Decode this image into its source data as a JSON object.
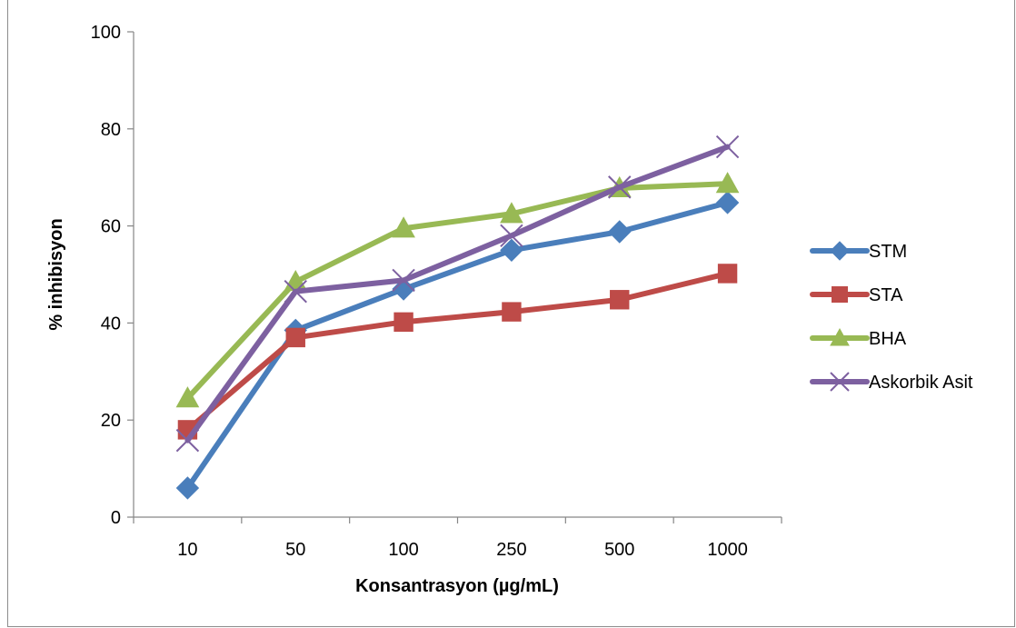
{
  "chart_data": {
    "type": "line",
    "xlabel": "Konsantrasyon (µg/mL)",
    "ylabel": "% inhibisyon",
    "categories": [
      "10",
      "50",
      "100",
      "250",
      "500",
      "1000"
    ],
    "ylim": [
      0,
      100
    ],
    "yticks": [
      0,
      20,
      40,
      60,
      80,
      100
    ],
    "grid": false,
    "legend": "right",
    "series": [
      {
        "name": "STM",
        "color": "#4a7ebb",
        "marker": "diamond",
        "values": [
          6,
          38.5,
          47,
          55,
          58.8,
          64.8
        ]
      },
      {
        "name": "STA",
        "color": "#be4b48",
        "marker": "square",
        "values": [
          18,
          37,
          40.2,
          42.3,
          44.8,
          50.2
        ]
      },
      {
        "name": "BHA",
        "color": "#98b954",
        "marker": "triangle",
        "values": [
          24.5,
          48.5,
          59.5,
          62.5,
          67.8,
          68.7
        ]
      },
      {
        "name": "Askorbik Asit",
        "color": "#7d60a0",
        "marker": "x",
        "values": [
          15.8,
          46.5,
          48.8,
          58,
          68,
          76.3
        ]
      }
    ]
  }
}
